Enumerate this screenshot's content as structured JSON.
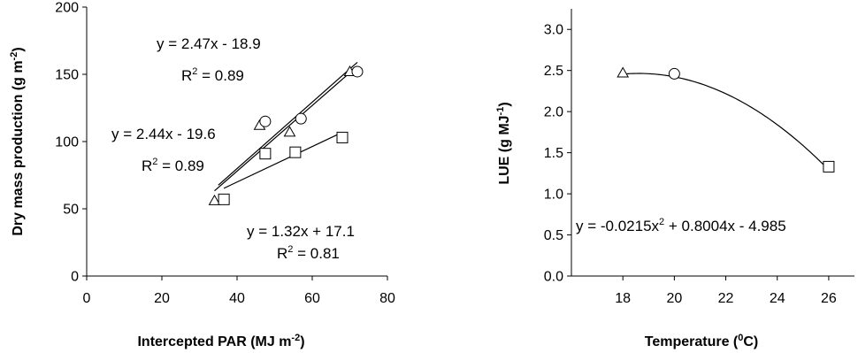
{
  "chart_data": [
    {
      "type": "scatter",
      "title": "",
      "xlabel": "Intercepted PAR (MJ m",
      "xlabel_sup": "-2",
      "xlabel_end": ")",
      "ylabel": "Dry mass production (g m",
      "ylabel_sup": "-2",
      "ylabel_end": ")",
      "xlim": [
        0,
        80
      ],
      "ylim": [
        0,
        200
      ],
      "xticks": [
        0,
        20,
        40,
        60,
        80
      ],
      "yticks": [
        0,
        50,
        100,
        150,
        200
      ],
      "grid": false,
      "series": [
        {
          "marker": "triangle",
          "points": [
            [
              34,
              56
            ],
            [
              46,
              112
            ],
            [
              54,
              107
            ],
            [
              70,
              152
            ]
          ],
          "trend": {
            "type": "linear",
            "slope": 2.44,
            "intercept": -19.6,
            "x_range": [
              34,
              70
            ]
          },
          "eq": "y = 2.44x - 19.6",
          "r2_label": "R",
          "r2_sup": "2",
          "r2_value": " = 0.89"
        },
        {
          "marker": "circle",
          "points": [
            [
              47.5,
              115
            ],
            [
              57,
              117
            ],
            [
              72,
              152
            ]
          ],
          "trend": {
            "type": "linear",
            "slope": 2.47,
            "intercept": -18.9,
            "x_range": [
              35,
              72
            ]
          },
          "eq": "y = 2.47x - 18.9",
          "r2_label": "R",
          "r2_sup": "2",
          "r2_value": " = 0.89"
        },
        {
          "marker": "square",
          "points": [
            [
              36.5,
              57
            ],
            [
              47.5,
              91
            ],
            [
              55.5,
              92
            ],
            [
              68,
              103
            ]
          ],
          "trend": {
            "type": "linear",
            "slope": 1.32,
            "intercept": 17.1,
            "x_range": [
              36.5,
              68
            ]
          },
          "eq": "y = 1.32x + 17.1",
          "r2_label": "R",
          "r2_sup": "2",
          "r2_value": " = 0.81"
        }
      ]
    },
    {
      "type": "scatter",
      "title": "",
      "xlabel": "Temperature (",
      "xlabel_sup": "0",
      "xlabel_end": "C)",
      "ylabel": "LUE (g MJ",
      "ylabel_sup": "-1",
      "ylabel_end": ")",
      "xlim": [
        16,
        27
      ],
      "ylim": [
        0,
        3.25
      ],
      "xticks": [
        18,
        20,
        22,
        24,
        26
      ],
      "yticks": [
        0.0,
        0.5,
        1.0,
        1.5,
        2.0,
        2.5,
        3.0
      ],
      "ytick_labels": [
        "0.0",
        "0.5",
        "1.0",
        "1.5",
        "2.0",
        "2.5",
        "3.0"
      ],
      "grid": false,
      "points": [
        {
          "x": 18,
          "y": 2.47,
          "marker": "triangle"
        },
        {
          "x": 20,
          "y": 2.46,
          "marker": "circle"
        },
        {
          "x": 26,
          "y": 1.33,
          "marker": "square"
        }
      ],
      "trend": {
        "type": "polynomial",
        "a": -0.0215,
        "b": 0.8004,
        "c": -4.985,
        "x_range": [
          18,
          26
        ]
      },
      "eq_pre": "y = -0.0215x",
      "eq_sup": "2",
      "eq_post": " + 0.8004x - 4.985"
    }
  ]
}
